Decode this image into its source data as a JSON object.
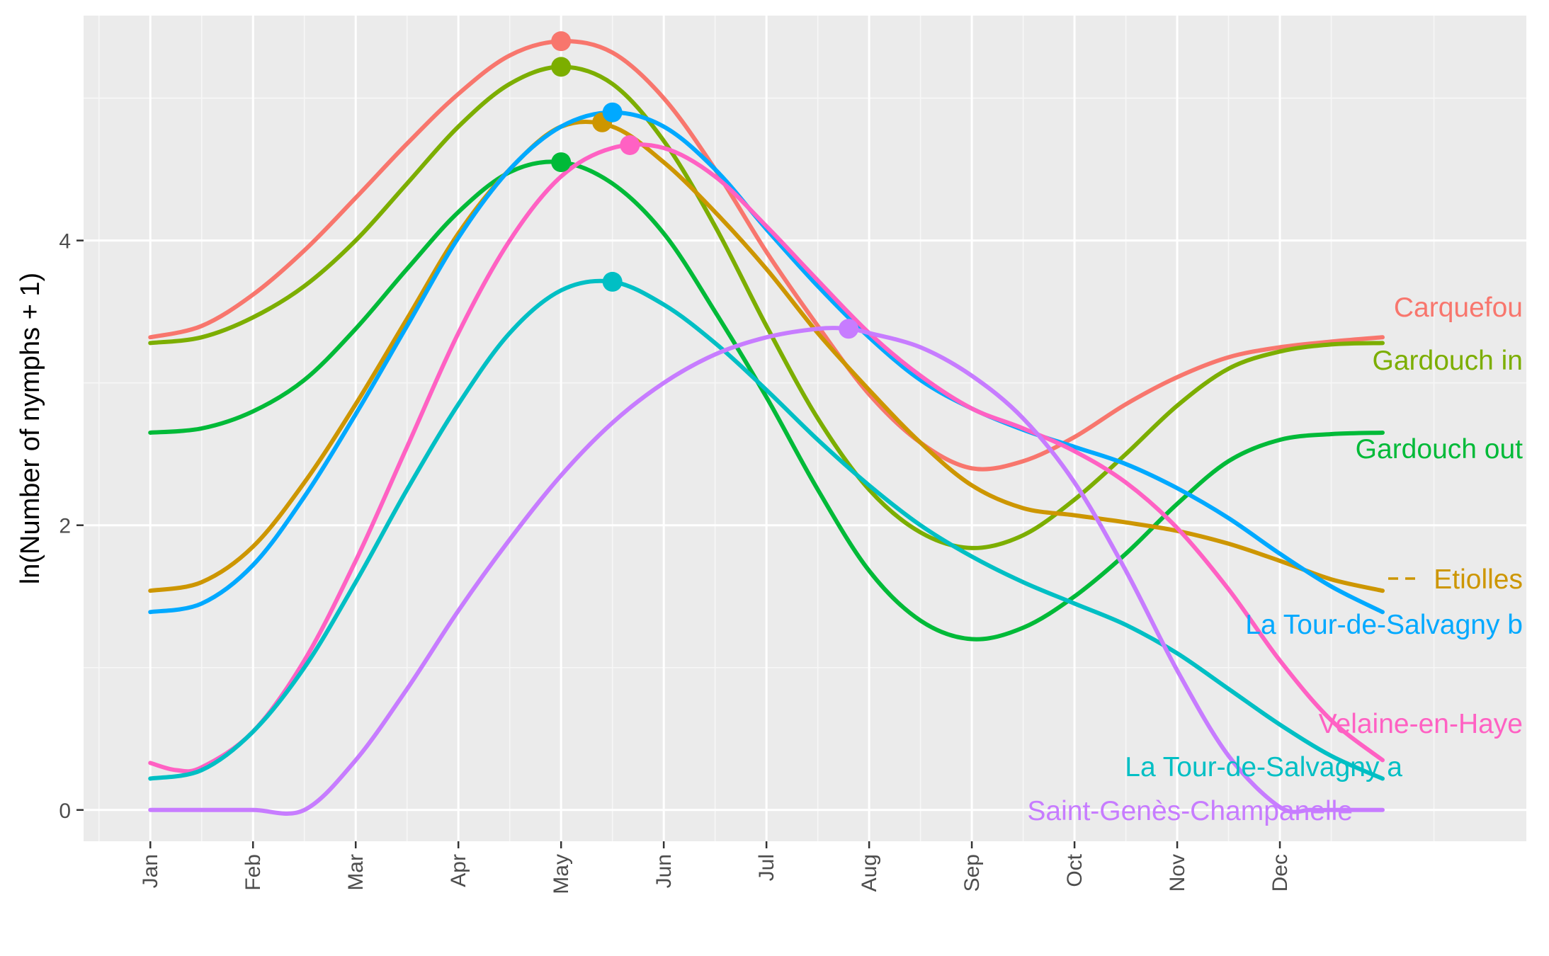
{
  "chart_data": {
    "type": "line",
    "title": "",
    "xlabel": "",
    "ylabel": "ln(Number of nymphs + 1)",
    "categories": [
      "Jan",
      "Feb",
      "Mar",
      "Apr",
      "May",
      "Jun",
      "Jul",
      "Aug",
      "Sep",
      "Oct",
      "Nov",
      "Dec"
    ],
    "xlim": [
      -0.65,
      13.4
    ],
    "ylim": [
      -0.22,
      5.58
    ],
    "y_ticks": [
      0,
      2,
      4
    ],
    "y_tick_labels": [
      "0",
      "2",
      "4"
    ],
    "grid": true,
    "legend": "direct labels at right end of lines",
    "series": [
      {
        "name": "Carquefou",
        "color": "#F8766D",
        "x": [
          0,
          0.5,
          1,
          1.5,
          2,
          2.5,
          3,
          3.5,
          4,
          4.5,
          5,
          5.5,
          6,
          6.5,
          7,
          7.5,
          8,
          8.5,
          9,
          9.5,
          10,
          10.5,
          11,
          11.5,
          12
        ],
        "y": [
          3.32,
          3.4,
          3.62,
          3.93,
          4.3,
          4.68,
          5.03,
          5.3,
          5.4,
          5.32,
          5.0,
          4.5,
          3.92,
          3.4,
          2.92,
          2.58,
          2.4,
          2.45,
          2.62,
          2.85,
          3.04,
          3.18,
          3.25,
          3.29,
          3.32
        ],
        "peak": {
          "x": 4.0,
          "y": 5.4
        },
        "label": "Carquefou"
      },
      {
        "name": "Gardouch in",
        "color": "#7CAE00",
        "x": [
          0,
          0.5,
          1,
          1.5,
          2,
          2.5,
          3,
          3.5,
          4,
          4.5,
          5,
          5.5,
          6,
          6.5,
          7,
          7.5,
          8,
          8.5,
          9,
          9.5,
          10,
          10.5,
          11,
          11.5,
          12
        ],
        "y": [
          3.28,
          3.32,
          3.46,
          3.68,
          4.0,
          4.4,
          4.8,
          5.1,
          5.22,
          5.1,
          4.7,
          4.1,
          3.4,
          2.75,
          2.25,
          1.95,
          1.84,
          1.93,
          2.18,
          2.5,
          2.84,
          3.1,
          3.22,
          3.27,
          3.28
        ],
        "peak": {
          "x": 4.0,
          "y": 5.22
        },
        "label": "Gardouch in"
      },
      {
        "name": "Gardouch out",
        "color": "#00BA38",
        "x": [
          0,
          0.5,
          1,
          1.5,
          2,
          2.5,
          3,
          3.5,
          4,
          4.5,
          5,
          5.5,
          6,
          6.5,
          7,
          7.5,
          8,
          8.5,
          9,
          9.5,
          10,
          10.5,
          11,
          11.5,
          12
        ],
        "y": [
          2.65,
          2.68,
          2.8,
          3.02,
          3.38,
          3.8,
          4.2,
          4.48,
          4.55,
          4.4,
          4.05,
          3.5,
          2.9,
          2.25,
          1.68,
          1.33,
          1.2,
          1.28,
          1.5,
          1.8,
          2.15,
          2.45,
          2.6,
          2.64,
          2.65
        ],
        "peak": {
          "x": 4.0,
          "y": 4.55
        },
        "label": "Gardouch out"
      },
      {
        "name": "Etiolles",
        "color": "#CD9600",
        "x": [
          0,
          0.5,
          1,
          1.5,
          2,
          2.5,
          3,
          3.5,
          4,
          4.5,
          5,
          5.5,
          6,
          6.5,
          7,
          7.5,
          8,
          8.5,
          9,
          9.5,
          10,
          10.5,
          11,
          11.5,
          12
        ],
        "y": [
          1.54,
          1.6,
          1.85,
          2.3,
          2.85,
          3.45,
          4.05,
          4.5,
          4.8,
          4.8,
          4.55,
          4.2,
          3.8,
          3.35,
          2.95,
          2.58,
          2.28,
          2.12,
          2.07,
          2.02,
          1.96,
          1.87,
          1.75,
          1.62,
          1.54
        ],
        "peak": {
          "x": 4.4,
          "y": 4.83
        },
        "label": "Etiolles"
      },
      {
        "name": "La Tour-de-Salvagny b",
        "color": "#00A9FF",
        "x": [
          0,
          0.5,
          1,
          1.5,
          2,
          2.5,
          3,
          3.5,
          4,
          4.5,
          5,
          5.5,
          6,
          6.5,
          7,
          7.5,
          8,
          8.5,
          9,
          9.5,
          10,
          10.5,
          11,
          11.5,
          12
        ],
        "y": [
          1.39,
          1.45,
          1.72,
          2.2,
          2.78,
          3.4,
          4.02,
          4.5,
          4.8,
          4.9,
          4.8,
          4.5,
          4.08,
          3.68,
          3.32,
          3.02,
          2.82,
          2.67,
          2.55,
          2.43,
          2.26,
          2.05,
          1.8,
          1.57,
          1.39
        ],
        "peak": {
          "x": 4.5,
          "y": 4.9
        },
        "label": "La Tour-de-Salvagny b"
      },
      {
        "name": "Velaine-en-Haye",
        "color": "#FF61C3",
        "x": [
          0,
          0.25,
          0.5,
          1,
          1.5,
          2,
          2.5,
          3,
          3.5,
          4,
          4.5,
          5,
          5.5,
          6,
          6.5,
          7,
          7.5,
          8,
          8.5,
          9,
          9.5,
          10,
          10.5,
          11,
          11.5,
          12
        ],
        "y": [
          0.33,
          0.28,
          0.3,
          0.55,
          1.05,
          1.75,
          2.55,
          3.35,
          4.0,
          4.45,
          4.65,
          4.65,
          4.45,
          4.1,
          3.72,
          3.35,
          3.05,
          2.82,
          2.68,
          2.52,
          2.3,
          1.98,
          1.55,
          1.05,
          0.63,
          0.35
        ],
        "peak": {
          "x": 4.67,
          "y": 4.67
        },
        "label": "Velaine-en-Haye"
      },
      {
        "name": "La Tour-de-Salvagny a",
        "color": "#00BFC4",
        "x": [
          0,
          0.5,
          1,
          1.5,
          2,
          2.5,
          3,
          3.5,
          4,
          4.5,
          5,
          5.5,
          6,
          6.5,
          7,
          7.5,
          8,
          8.5,
          9,
          9.5,
          10,
          10.5,
          11,
          11.5,
          12
        ],
        "y": [
          0.22,
          0.28,
          0.55,
          1.0,
          1.6,
          2.25,
          2.85,
          3.35,
          3.65,
          3.71,
          3.55,
          3.28,
          2.95,
          2.6,
          2.28,
          2.0,
          1.78,
          1.6,
          1.45,
          1.3,
          1.1,
          0.85,
          0.6,
          0.38,
          0.22
        ],
        "peak": {
          "x": 4.5,
          "y": 3.71
        },
        "label": "La Tour-de-Salvagny a"
      },
      {
        "name": "Saint-Genès-Champanelle",
        "color": "#C77CFF",
        "x": [
          0,
          0.5,
          1,
          1.5,
          2,
          2.5,
          3,
          3.5,
          4,
          4.5,
          5,
          5.5,
          6,
          6.5,
          6.8,
          7,
          7.5,
          8,
          8.5,
          9,
          9.5,
          10,
          10.5,
          11,
          11.3,
          11.5,
          12
        ],
        "y": [
          0,
          0,
          0,
          0,
          0.35,
          0.85,
          1.4,
          1.9,
          2.35,
          2.72,
          3.0,
          3.2,
          3.32,
          3.38,
          3.38,
          3.35,
          3.25,
          3.05,
          2.75,
          2.3,
          1.68,
          0.98,
          0.38,
          0.02,
          0,
          0,
          0
        ],
        "peak": {
          "x": 6.8,
          "y": 3.38
        },
        "label": "Saint-Genès-Champanelle"
      }
    ]
  }
}
